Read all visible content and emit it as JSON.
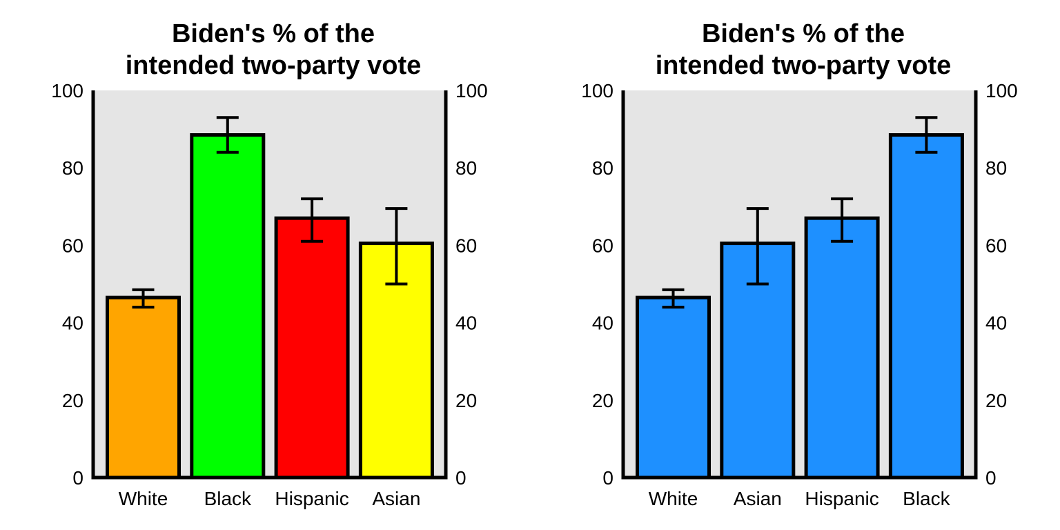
{
  "chart_data": [
    {
      "type": "bar",
      "title_lines": [
        "Biden's % of the",
        "intended two-party vote"
      ],
      "categories": [
        "White",
        "Black",
        "Hispanic",
        "Asian"
      ],
      "values": [
        46.5,
        88.5,
        67,
        60.5
      ],
      "error_low": [
        44,
        84,
        61,
        50
      ],
      "error_high": [
        48.5,
        93,
        72,
        69.5
      ],
      "colors": [
        "#FFA500",
        "#00FF00",
        "#FF0000",
        "#FFFF00"
      ],
      "ylim": [
        0,
        100
      ],
      "yticks": [
        "0",
        "20",
        "40",
        "60",
        "80",
        "100"
      ],
      "panel_background": "#E5E5E5",
      "grid": false,
      "y_axis_sides": "both"
    },
    {
      "type": "bar",
      "title_lines": [
        "Biden's % of the",
        "intended two-party vote"
      ],
      "categories": [
        "White",
        "Asian",
        "Hispanic",
        "Black"
      ],
      "values": [
        46.5,
        60.5,
        67,
        88.5
      ],
      "error_low": [
        44,
        50,
        61,
        84
      ],
      "error_high": [
        48.5,
        69.5,
        72,
        93
      ],
      "colors": [
        "#1E90FF",
        "#1E90FF",
        "#1E90FF",
        "#1E90FF"
      ],
      "ylim": [
        0,
        100
      ],
      "yticks": [
        "0",
        "20",
        "40",
        "60",
        "80",
        "100"
      ],
      "panel_background": "#E5E5E5",
      "grid": false,
      "y_axis_sides": "both"
    }
  ]
}
